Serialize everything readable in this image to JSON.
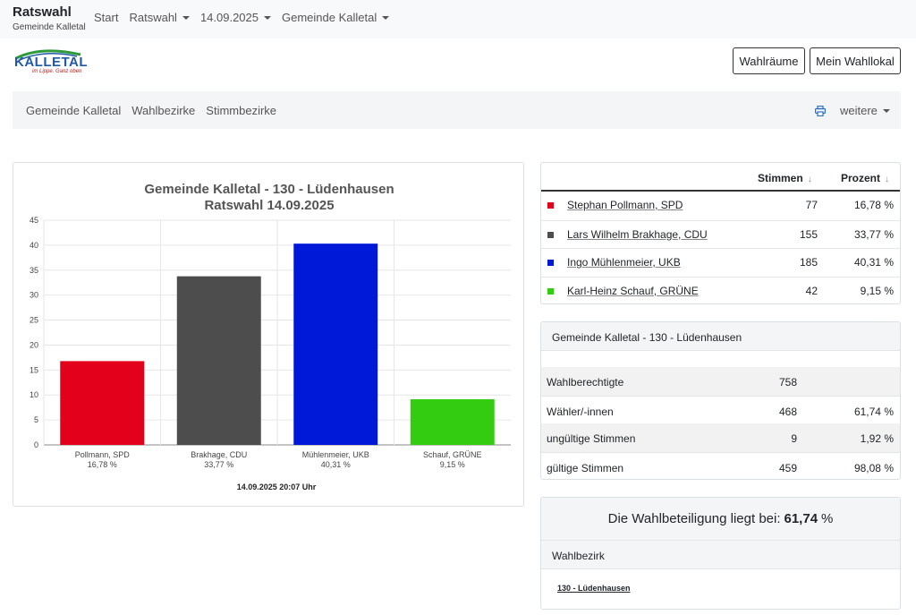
{
  "navbar": {
    "brand_title": "Ratswahl",
    "brand_subtitle": "Gemeinde Kalletal",
    "items": [
      {
        "label": "Start",
        "dropdown": false
      },
      {
        "label": "Ratswahl",
        "dropdown": true
      },
      {
        "label": "14.09.2025",
        "dropdown": true
      },
      {
        "label": "Gemeinde Kalletal",
        "dropdown": true
      }
    ]
  },
  "logo": {
    "word": "KALLETAL",
    "tagline": "im Lippe. Ganz oben",
    "color": "#1e5aa8"
  },
  "header_buttons": {
    "wahlraeume": "Wahlräume",
    "mein_wahllokal": "Mein Wahllokal"
  },
  "subnav": {
    "links": [
      "Gemeinde Kalletal",
      "Wahlbezirke",
      "Stimmbezirke"
    ],
    "print_icon": "printer-icon",
    "more_label": "weitere"
  },
  "chart_data": {
    "type": "bar",
    "title": "Gemeinde Kalletal - 130 - Lüdenhausen",
    "subtitle": "Ratswahl 14.09.2025",
    "categories": [
      "Pollmann, SPD",
      "Brakhage, CDU",
      "Mühlenmeier, UKB",
      "Schauf, GRÜNE"
    ],
    "category_percent_labels": [
      "16,78 %",
      "33,77 %",
      "40,31 %",
      "9,15 %"
    ],
    "values": [
      16.78,
      33.77,
      40.31,
      9.15
    ],
    "colors": [
      "#e2001a",
      "#4d4d4d",
      "#0019d9",
      "#33cc11"
    ],
    "ylim": [
      0,
      45
    ],
    "yticks": [
      0,
      5,
      10,
      15,
      20,
      25,
      30,
      35,
      40,
      45
    ],
    "grid": true,
    "footer": "14.09.2025 20:07 Uhr"
  },
  "results_table": {
    "columns": {
      "votes": "Stimmen",
      "percent": "Prozent"
    },
    "sort_icon": "arrow-down-icon",
    "rows": [
      {
        "name": "Stephan Pollmann, SPD",
        "votes": "77",
        "percent": "16,78 %",
        "color": "#e2001a"
      },
      {
        "name": "Lars Wilhelm Brakhage, CDU",
        "votes": "155",
        "percent": "33,77 %",
        "color": "#4d4d4d"
      },
      {
        "name": "Ingo Mühlenmeier, UKB",
        "votes": "185",
        "percent": "40,31 %",
        "color": "#0019d9"
      },
      {
        "name": "Karl-Heinz Schauf, GRÜNE",
        "votes": "42",
        "percent": "9,15 %",
        "color": "#33cc11"
      }
    ]
  },
  "stats": {
    "title": "Gemeinde Kalletal - 130 - Lüdenhausen",
    "rows": [
      {
        "label": "Wahlberechtigte",
        "value": "758",
        "percent": ""
      },
      {
        "label": "Wähler/-innen",
        "value": "468",
        "percent": "61,74 %"
      },
      {
        "label": "ungültige Stimmen",
        "value": "9",
        "percent": "1,92 %"
      },
      {
        "label": "gültige Stimmen",
        "value": "459",
        "percent": "98,08 %"
      }
    ]
  },
  "turnout": {
    "text": "Die Wahlbeteiligung liegt bei:",
    "value": "61,74",
    "unit": "%",
    "wahlbezirk_label": "Wahlbezirk",
    "wahlbezirk_link": "130 - Lüdenhausen"
  }
}
